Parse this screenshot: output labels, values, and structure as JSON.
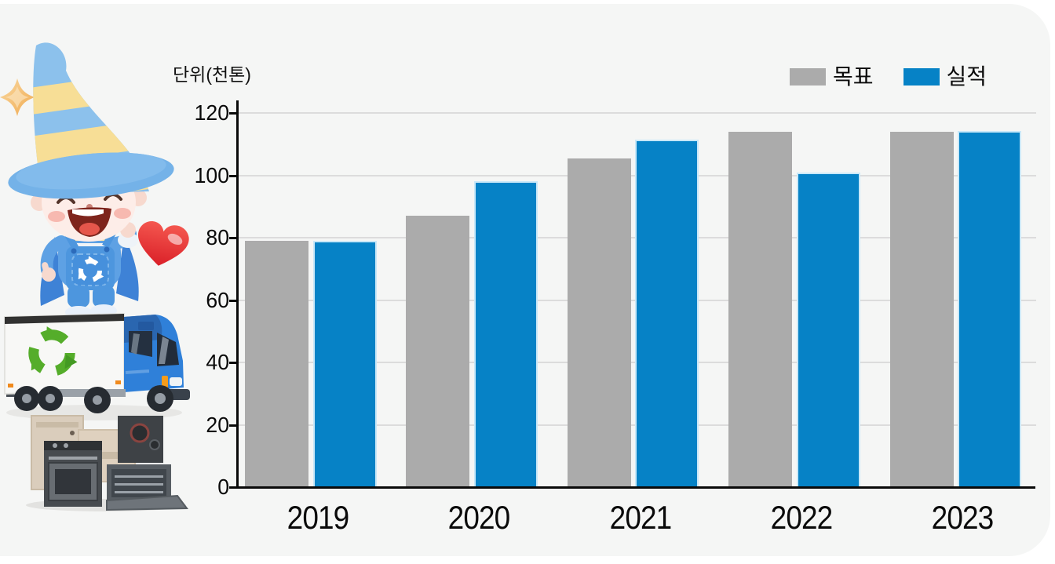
{
  "page": {
    "background": "#ffffff",
    "panel_color": "#f5f6f5"
  },
  "chart_data": {
    "type": "bar",
    "unit_label": "단위(천톤)",
    "categories": [
      "2019",
      "2020",
      "2021",
      "2022",
      "2023"
    ],
    "series": [
      {
        "name": "목표",
        "color": "#ababab",
        "values": [
          79,
          87,
          105.5,
          114,
          114
        ]
      },
      {
        "name": "실적",
        "color": "#0682c6",
        "values": [
          79,
          98,
          111.5,
          101,
          114.3
        ]
      }
    ],
    "ylim": [
      0,
      120
    ],
    "yticks": [
      0,
      20,
      40,
      60,
      80,
      100,
      120
    ],
    "grid": true,
    "gridline_color": "#dcdcdc",
    "axis_color": "#0a0a0a",
    "legend_position": "top-right"
  },
  "illustration": {
    "elements": [
      "sparkle-star",
      "wizard-mascot-thumbs-up",
      "red-heart",
      "recycling-box-truck",
      "discarded-appliances",
      "recycle-symbol"
    ]
  }
}
